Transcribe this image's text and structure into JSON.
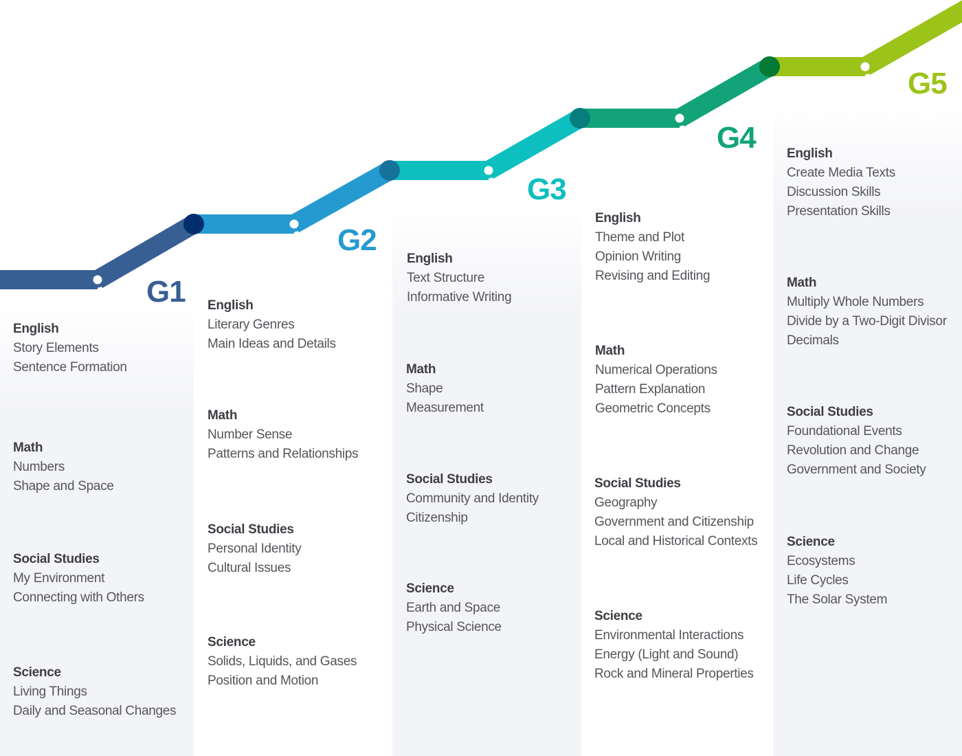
{
  "grades": [
    {
      "label": "G1",
      "color": "#385f93",
      "subjects": [
        {
          "name": "English",
          "topics": [
            "Story Elements",
            "Sentence Formation"
          ]
        },
        {
          "name": "Math",
          "topics": [
            "Numbers",
            "Shape and Space"
          ]
        },
        {
          "name": "Social Studies",
          "topics": [
            "My Environment",
            "Connecting with Others"
          ]
        },
        {
          "name": "Science",
          "topics": [
            "Living Things",
            "Daily and Seasonal Changes"
          ]
        }
      ]
    },
    {
      "label": "G2",
      "color": "#259ad0",
      "subjects": [
        {
          "name": "English",
          "topics": [
            "Literary Genres",
            "Main Ideas and Details"
          ]
        },
        {
          "name": "Math",
          "topics": [
            "Number Sense",
            "Patterns and Relationships"
          ]
        },
        {
          "name": "Social Studies",
          "topics": [
            "Personal Identity",
            "Cultural Issues"
          ]
        },
        {
          "name": "Science",
          "topics": [
            "Solids, Liquids, and Gases",
            "Position and Motion"
          ]
        }
      ]
    },
    {
      "label": "G3",
      "color": "#0dbfbf",
      "subjects": [
        {
          "name": "English",
          "topics": [
            "Text Structure",
            "Informative Writing"
          ]
        },
        {
          "name": "Math",
          "topics": [
            "Shape",
            "Measurement"
          ]
        },
        {
          "name": "Social Studies",
          "topics": [
            "Community and Identity",
            "Citizenship"
          ]
        },
        {
          "name": "Science",
          "topics": [
            "Earth and Space",
            "Physical Science"
          ]
        }
      ]
    },
    {
      "label": "G4",
      "color": "#12a478",
      "subjects": [
        {
          "name": "English",
          "topics": [
            "Theme and Plot",
            "Opinion Writing",
            "Revising and Editing"
          ]
        },
        {
          "name": "Math",
          "topics": [
            "Numerical Operations",
            "Pattern Explanation",
            "Geometric Concepts"
          ]
        },
        {
          "name": "Social Studies",
          "topics": [
            "Geography",
            "Government and Citizenship",
            "Local and Historical Contexts"
          ]
        },
        {
          "name": "Science",
          "topics": [
            "Environmental Interactions",
            "Energy (Light and Sound)",
            "Rock and Mineral Properties"
          ]
        }
      ]
    },
    {
      "label": "G5",
      "color": "#9cc31a",
      "subjects": [
        {
          "name": "English",
          "topics": [
            "Create Media Texts",
            "Discussion Skills",
            "Presentation Skills"
          ]
        },
        {
          "name": "Math",
          "topics": [
            "Multiply Whole Numbers",
            "Divide by a Two-Digit Divisor",
            "Decimals"
          ]
        },
        {
          "name": "Social Studies",
          "topics": [
            "Foundational Events",
            "Revolution and Change",
            "Government and Society"
          ]
        },
        {
          "name": "Science",
          "topics": [
            "Ecosystems",
            "Life Cycles",
            "The Solar System"
          ]
        }
      ]
    }
  ]
}
